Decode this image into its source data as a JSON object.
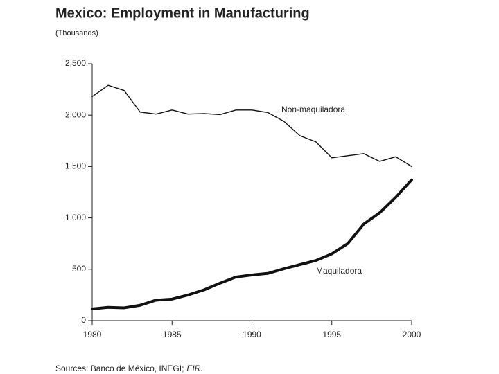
{
  "chart_data": {
    "type": "line",
    "title": "Mexico: Employment in Manufacturing",
    "subtitle": "(Thousands)",
    "source": [
      "Sources: Banco de México, INEGI;",
      "EIR."
    ],
    "x": [
      1980,
      1981,
      1982,
      1983,
      1984,
      1985,
      1986,
      1987,
      1988,
      1989,
      1990,
      1991,
      1992,
      1993,
      1994,
      1995,
      1996,
      1997,
      1998,
      1999,
      2000
    ],
    "series": [
      {
        "name": "Non-maquiladora",
        "color": "#111111",
        "values": [
          2180,
          2290,
          2240,
          2030,
          2010,
          2050,
          2010,
          2015,
          2005,
          2050,
          2050,
          2025,
          1940,
          1800,
          1740,
          1585,
          1605,
          1625,
          1550,
          1595,
          1500
        ]
      },
      {
        "name": "Maquiladora",
        "color": "#111111",
        "values": [
          115,
          130,
          125,
          150,
          200,
          210,
          250,
          300,
          365,
          425,
          445,
          460,
          505,
          545,
          585,
          650,
          750,
          940,
          1050,
          1200,
          1370
        ]
      }
    ],
    "xlim": [
      1980,
      2000
    ],
    "xticks": [
      1980,
      1985,
      1990,
      1995,
      2000
    ],
    "ylim": [
      0,
      2500
    ],
    "yticks": [
      0,
      500,
      {
        "value": 1000,
        "label": "1,000"
      },
      {
        "value": 1500,
        "label": "1,500"
      },
      {
        "value": 2000,
        "label": "2,000"
      },
      {
        "value": 2500,
        "label": "2,500"
      }
    ]
  }
}
